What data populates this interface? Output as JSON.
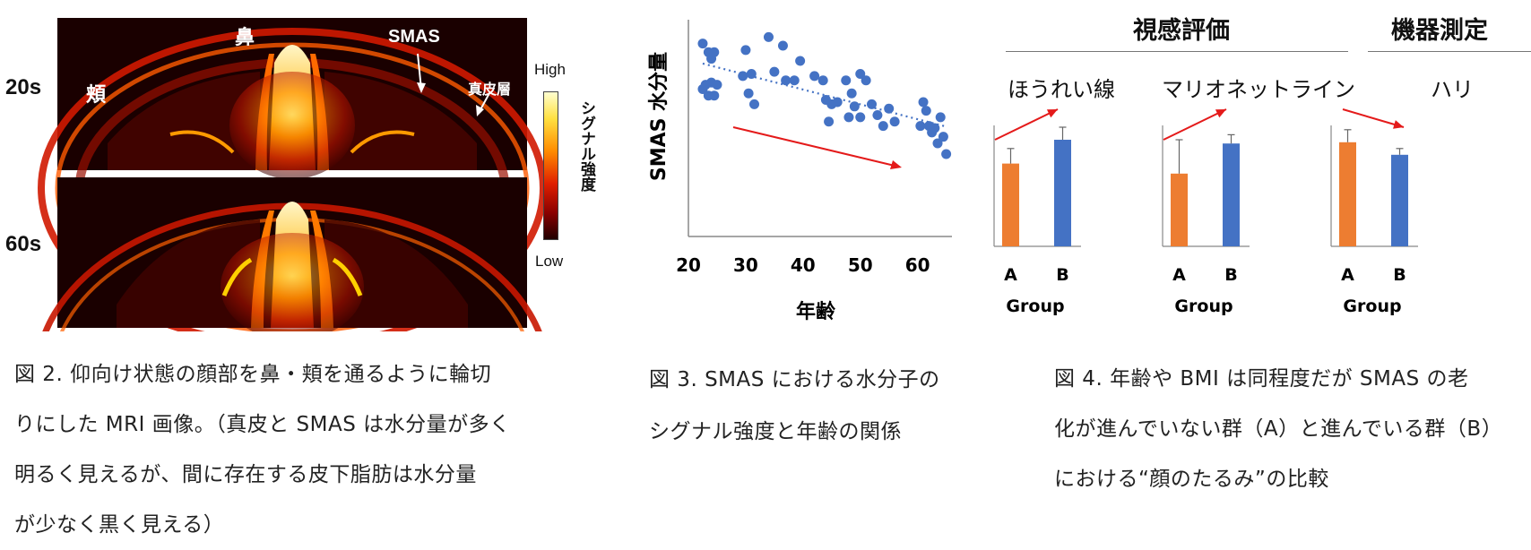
{
  "figure2": {
    "row_labels": [
      "20s",
      "60s"
    ],
    "labels": {
      "nose": "鼻",
      "cheek": "頬",
      "smas": "SMAS",
      "dermis": "真皮層"
    },
    "colorbar": {
      "high": "High",
      "low": "Low",
      "title": "シグナル強度"
    },
    "caption": [
      "図 2.  仰向け状態の顔部を鼻・頬を通るように輪切",
      "りにした MRI 画像。（真皮と SMAS は水分量が多く",
      "明るく見えるが、間に存在する皮下脂肪は水分量",
      "が少なく黒く見える）"
    ]
  },
  "figure3": {
    "caption": [
      "図 3. SMAS における水分子の",
      "シグナル強度と年齢の関係"
    ]
  },
  "figure4": {
    "header_visual": "視感評価",
    "header_instrument": "機器測定",
    "caption": [
      "図 4.  年齢や BMI は同程度だが SMAS の老",
      "化が進んでいない群（A）と進んでいる群（B）",
      "における“顔のたるみ”の比較"
    ]
  },
  "chart_data": [
    {
      "type": "scatter",
      "title": "",
      "xlabel": "年齢",
      "ylabel": "SMAS 水分量",
      "xlim": [
        20,
        66
      ],
      "xticks": [
        20,
        30,
        40,
        50,
        60
      ],
      "y_ticks_shown": false,
      "trendline": "dotted linear (decreasing)",
      "annotation": "red arrow pointing down-right",
      "points": [
        [
          22.5,
          0.89
        ],
        [
          23.5,
          0.85
        ],
        [
          24.0,
          0.82
        ],
        [
          24.5,
          0.85
        ],
        [
          23.0,
          0.7
        ],
        [
          22.5,
          0.68
        ],
        [
          23.5,
          0.65
        ],
        [
          24.5,
          0.65
        ],
        [
          24.0,
          0.71
        ],
        [
          25.0,
          0.7
        ],
        [
          30.0,
          0.86
        ],
        [
          31.0,
          0.75
        ],
        [
          29.5,
          0.74
        ],
        [
          30.5,
          0.66
        ],
        [
          31.5,
          0.61
        ],
        [
          34.0,
          0.92
        ],
        [
          35.0,
          0.76
        ],
        [
          36.5,
          0.88
        ],
        [
          37.0,
          0.72
        ],
        [
          38.5,
          0.72
        ],
        [
          39.5,
          0.81
        ],
        [
          42.0,
          0.74
        ],
        [
          43.5,
          0.72
        ],
        [
          44.0,
          0.63
        ],
        [
          44.5,
          0.53
        ],
        [
          45.0,
          0.61
        ],
        [
          46.0,
          0.62
        ],
        [
          47.5,
          0.72
        ],
        [
          48.0,
          0.55
        ],
        [
          48.5,
          0.66
        ],
        [
          49.0,
          0.6
        ],
        [
          50.0,
          0.55
        ],
        [
          50.0,
          0.75
        ],
        [
          51.0,
          0.72
        ],
        [
          52.0,
          0.61
        ],
        [
          53.0,
          0.56
        ],
        [
          54.0,
          0.51
        ],
        [
          55.0,
          0.59
        ],
        [
          56.0,
          0.53
        ],
        [
          61.0,
          0.62
        ],
        [
          61.5,
          0.58
        ],
        [
          62.0,
          0.51
        ],
        [
          62.5,
          0.48
        ],
        [
          63.0,
          0.5
        ],
        [
          63.5,
          0.43
        ],
        [
          64.0,
          0.55
        ],
        [
          64.5,
          0.46
        ],
        [
          65.0,
          0.38
        ],
        [
          60.5,
          0.51
        ]
      ]
    },
    {
      "type": "bar",
      "title": "ほうれい線",
      "xlabel": "Group",
      "categories": [
        "A",
        "B"
      ],
      "values": [
        0.66,
        0.85
      ],
      "errors": [
        0.12,
        0.1
      ],
      "ylim": [
        0,
        1.0
      ],
      "colors": [
        "#ED7D31",
        "#4472C4"
      ],
      "annotation": "red arrow upward"
    },
    {
      "type": "bar",
      "title": "マリオネットライン",
      "xlabel": "Group",
      "categories": [
        "A",
        "B"
      ],
      "values": [
        0.58,
        0.82
      ],
      "errors": [
        0.27,
        0.07
      ],
      "ylim": [
        0,
        1.0
      ],
      "colors": [
        "#ED7D31",
        "#4472C4"
      ],
      "annotation": "red arrow upward"
    },
    {
      "type": "bar",
      "title": "ハリ",
      "xlabel": "Group",
      "categories": [
        "A",
        "B"
      ],
      "values": [
        0.83,
        0.73
      ],
      "errors": [
        0.1,
        0.05
      ],
      "ylim": [
        0,
        1.0
      ],
      "colors": [
        "#ED7D31",
        "#4472C4"
      ],
      "annotation": "red arrow downward"
    }
  ]
}
